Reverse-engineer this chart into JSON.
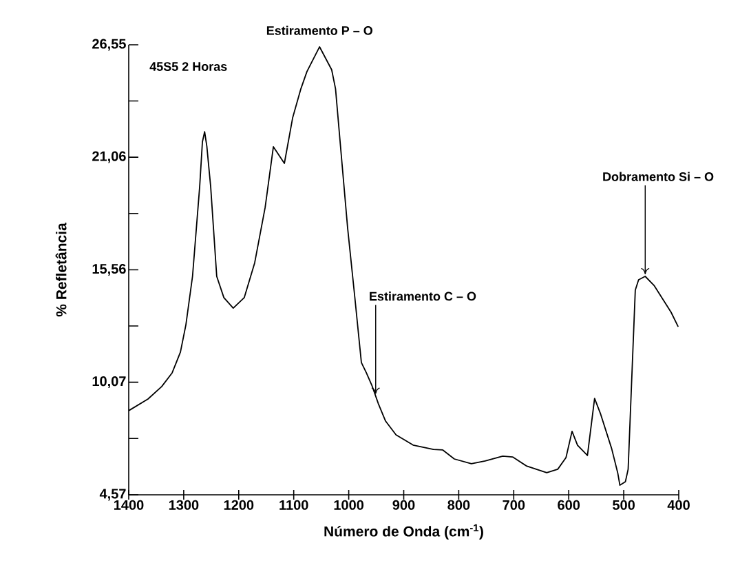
{
  "chart_data": {
    "type": "line",
    "xlabel": "Número de Onda (cm$^{-1}$)",
    "ylabel": "% Refletância",
    "annotations": [
      "45S5 2 Horas",
      {
        "text": "Estiramento P – O",
        "x": 1053,
        "y": 26.45
      },
      {
        "text": "Estiramento C – O",
        "x": 951,
        "y": 9.4
      },
      {
        "text": "Dobramento Si – O",
        "x": 461,
        "y": 15.24
      }
    ],
    "series": [
      {
        "color": "#000000",
        "x": [
          1400,
          1365,
          1340,
          1321,
          1306,
          1296,
          1284,
          1271,
          1266,
          1262,
          1258,
          1251,
          1240,
          1227,
          1210,
          1190,
          1171,
          1152,
          1137,
          1117,
          1102,
          1087,
          1076,
          1053,
          1031,
          1024,
          1014,
          1002,
          989,
          977,
          968,
          958,
          946,
          933,
          914,
          883,
          846,
          829,
          808,
          777,
          752,
          720,
          702,
          677,
          640,
          620,
          605,
          594,
          584,
          566,
          553,
          542,
          522,
          511,
          507,
          497,
          492,
          486,
          479,
          473,
          461,
          445,
          414,
          401
        ],
        "values": [
          8.68,
          9.25,
          9.86,
          10.53,
          11.54,
          12.88,
          15.24,
          19.62,
          21.81,
          22.3,
          21.6,
          19.62,
          15.24,
          14.2,
          13.69,
          14.2,
          15.9,
          18.6,
          21.57,
          20.76,
          22.98,
          24.4,
          25.24,
          26.45,
          25.33,
          24.4,
          21.3,
          17.6,
          14.23,
          11.03,
          10.53,
          9.92,
          9.01,
          8.17,
          7.5,
          7.0,
          6.79,
          6.76,
          6.32,
          6.09,
          6.22,
          6.46,
          6.42,
          5.98,
          5.65,
          5.82,
          6.39,
          7.67,
          6.99,
          6.49,
          9.28,
          8.51,
          6.83,
          5.65,
          5.04,
          5.21,
          5.82,
          9.86,
          14.57,
          15.07,
          15.24,
          14.8,
          13.49,
          12.78
        ]
      }
    ],
    "xlim": [
      1400,
      400
    ],
    "xticks": [
      1400,
      1300,
      1200,
      1100,
      1000,
      900,
      800,
      700,
      600,
      500,
      400
    ],
    "ylim": [
      4.57,
      26.55
    ],
    "yticks": [
      {
        "value": 4.57,
        "label": "4,57"
      },
      {
        "value": 7.32,
        "label": null
      },
      {
        "value": 10.07,
        "label": "10,07"
      },
      {
        "value": 12.815,
        "label": null
      },
      {
        "value": 15.56,
        "label": "15,56"
      },
      {
        "value": 18.31,
        "label": null
      },
      {
        "value": 21.06,
        "label": "21,06"
      },
      {
        "value": 23.805,
        "label": null
      },
      {
        "value": 26.55,
        "label": "26,55"
      }
    ],
    "grid": false
  }
}
